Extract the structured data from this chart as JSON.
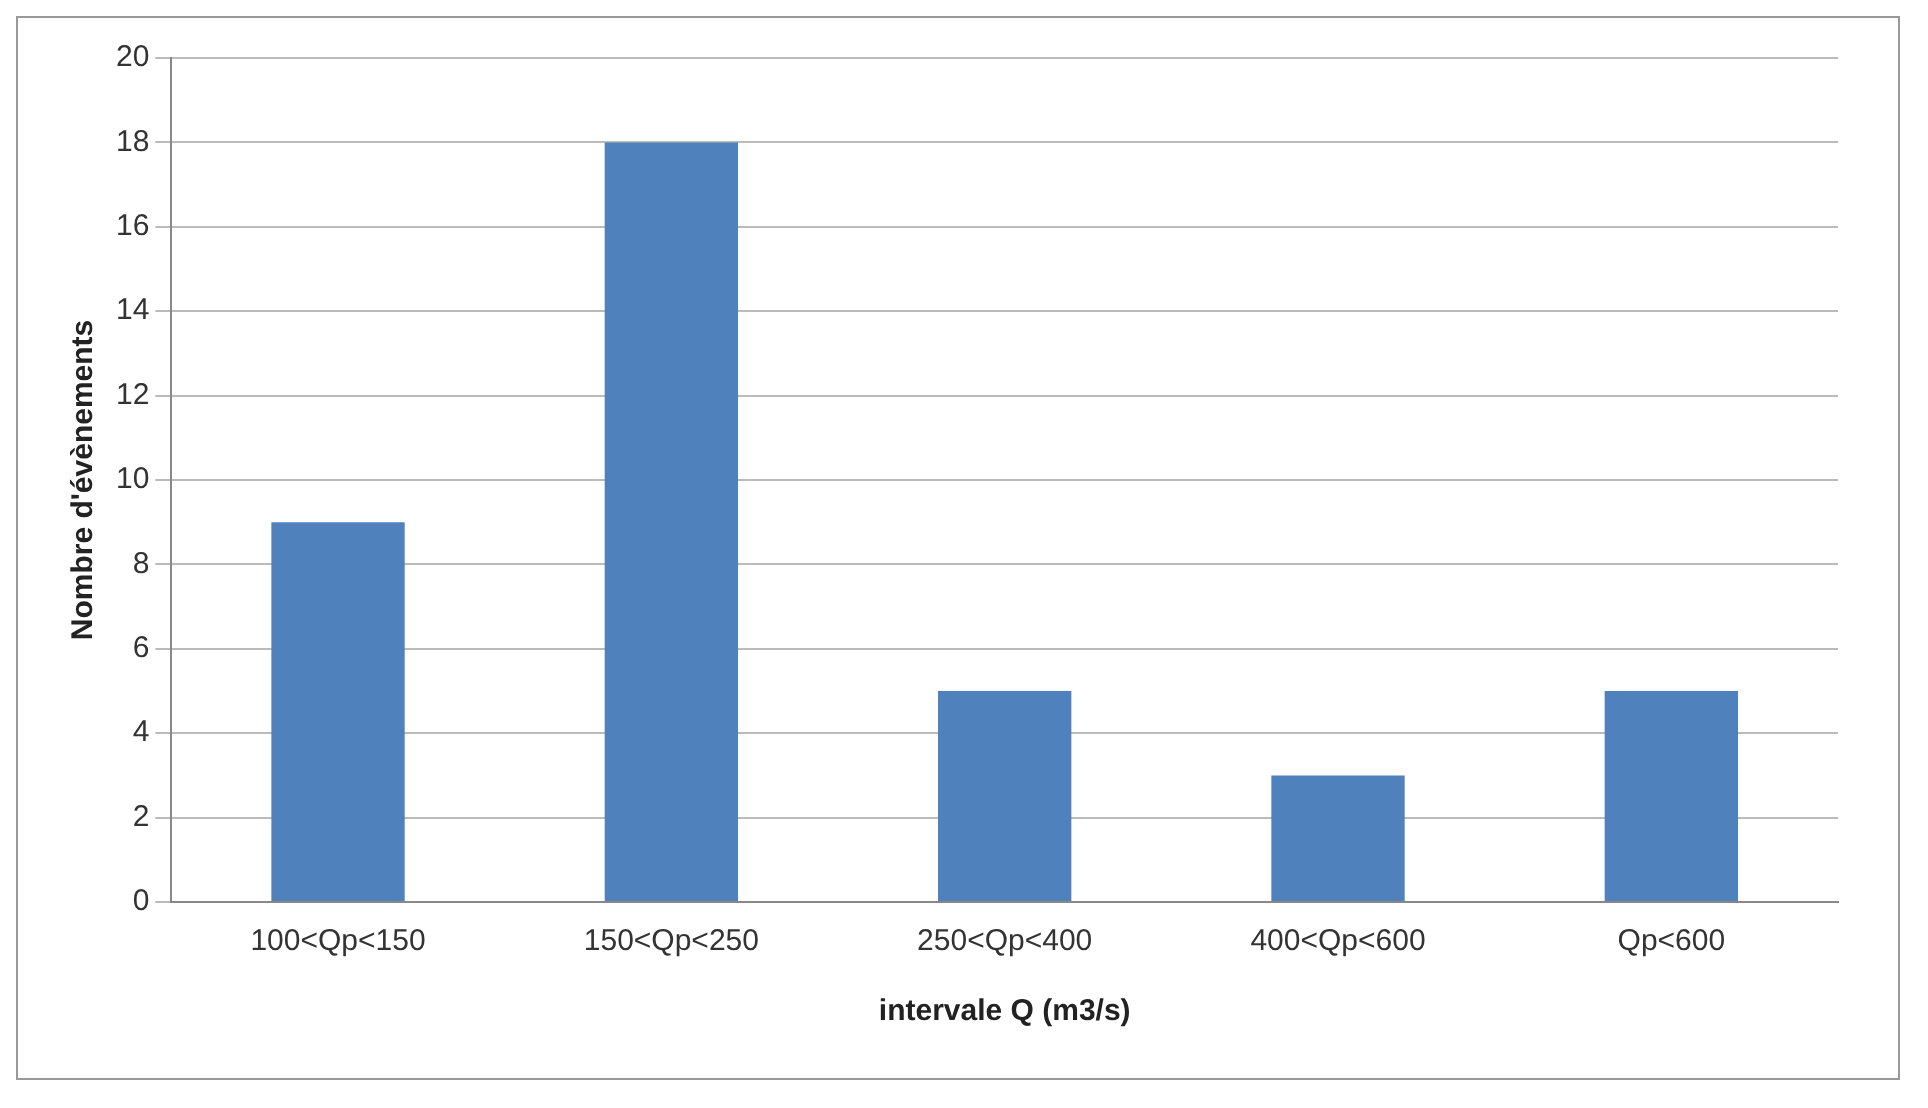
{
  "chart_data": {
    "type": "bar",
    "xlabel": "intervale Q (m3/s)",
    "ylabel": "Nombre d'évènements",
    "categories": [
      "100<Qp<150",
      "150<Qp<250",
      "250<Qp<400",
      "400<Qp<600",
      "Qp<600"
    ],
    "values": [
      9,
      18,
      5,
      3,
      5
    ],
    "color": "#4f81bd",
    "ylim": [
      0,
      20
    ],
    "yticks": [
      0,
      2,
      4,
      6,
      8,
      10,
      12,
      14,
      16,
      18,
      20
    ],
    "grid": "y"
  }
}
